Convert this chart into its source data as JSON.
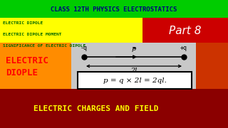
{
  "title": "CLASS 12TH PHYSICS ELECTROSTATICS",
  "title_bg": "#00cc00",
  "title_color": "#000080",
  "subtitle_lines": [
    "ELECTRIC DIPOLE",
    "ELECTRIC DIPOLE MOMENT",
    "SIGNIFICANCE OF ELECTRIC DIPOLE"
  ],
  "subtitle_bg": "#ffff00",
  "subtitle_color": "#006600",
  "part_text": "Part 8",
  "part_bg": "#cc0000",
  "part_color": "#ffffff",
  "left_text_line1": "ELECTRIC",
  "left_text_line2": "DIOPLE",
  "left_text_color": "#ff0000",
  "left_bg": "#ff8c00",
  "center_bg": "#c8c8c8",
  "bottom_text": "ELECTRIC CHARGES AND FIELD",
  "bottom_bg": "#8b0000",
  "bottom_color": "#ffff00",
  "formula": "p = q × 2l = 2ql.",
  "neg_charge": "-q",
  "pos_charge": "+q",
  "dipole_label": "2l",
  "p_label": "p",
  "right_person_bg": "#cc3300",
  "bg_main": "#ff8c00"
}
